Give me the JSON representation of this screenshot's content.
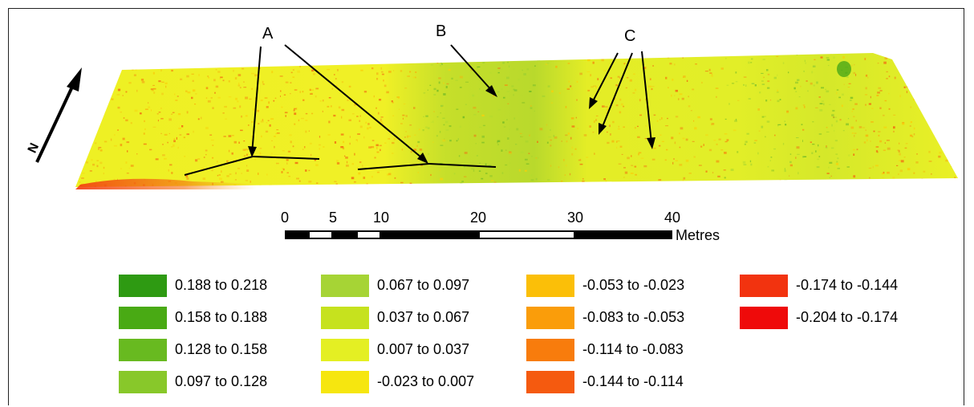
{
  "map": {
    "north_label": "N",
    "annotations": [
      {
        "letter": "A"
      },
      {
        "letter": "B"
      },
      {
        "letter": "C"
      }
    ],
    "scale_bar": {
      "ticks": [
        "0",
        "5",
        "10",
        "20",
        "30",
        "40"
      ],
      "units": "Metres"
    }
  },
  "legend": {
    "columns": [
      [
        {
          "label": "0.188 to 0.218",
          "color": "#2e9a12"
        },
        {
          "label": "0.158 to 0.188",
          "color": "#49aa14"
        },
        {
          "label": "0.128 to 0.158",
          "color": "#68ba20"
        },
        {
          "label": "0.097 to 0.128",
          "color": "#88c82a"
        }
      ],
      [
        {
          "label": "0.067 to 0.097",
          "color": "#a6d435"
        },
        {
          "label": "0.037 to 0.067",
          "color": "#c6e21e"
        },
        {
          "label": "0.007 to 0.037",
          "color": "#e4ef23"
        },
        {
          "label": "-0.023 to 0.007",
          "color": "#f6e60f"
        }
      ],
      [
        {
          "label": "-0.053 to -0.023",
          "color": "#fbbf08"
        },
        {
          "label": "-0.083 to -0.053",
          "color": "#fa9d0a"
        },
        {
          "label": "-0.114 to -0.083",
          "color": "#f87c0c"
        },
        {
          "label": "-0.144 to -0.114",
          "color": "#f55a0f"
        }
      ],
      [
        {
          "label": "-0.174 to -0.144",
          "color": "#f2330f"
        },
        {
          "label": "-0.204 to -0.174",
          "color": "#ef0a0a"
        }
      ]
    ]
  }
}
